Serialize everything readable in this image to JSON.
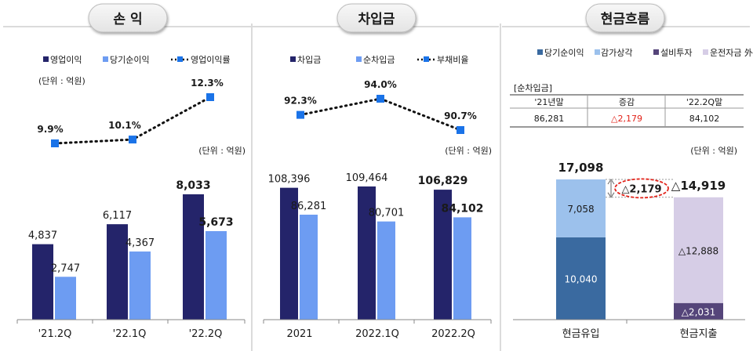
{
  "colors": {
    "navy": "#24246a",
    "light_blue": "#6d9cf2",
    "marker_blue": "#1a73e8",
    "steel_blue": "#3a6aa0",
    "pale_blue": "#9cc1ec",
    "purple": "#55457a",
    "lavender": "#d6cde6",
    "delta_red": "#e2231a",
    "frame_gray": "#cfcfcf"
  },
  "panels": {
    "pl": {
      "title": "손 익",
      "legend": [
        "영업이익",
        "당기순이익",
        "영업이익률"
      ],
      "unit_top": "(단위 : 억원)",
      "unit_mid": "(단위 : 억원)"
    },
    "debt": {
      "title": "차입금",
      "legend": [
        "차입금",
        "순차입금",
        "부채비율"
      ],
      "unit_mid": "(단위 : 억원)"
    },
    "cash": {
      "title": "현금흐름",
      "legend": [
        "당기순이익",
        "감가상각",
        "설비투자",
        "운전자금 外"
      ],
      "table_title": "[순차입금]",
      "table_headers": [
        "'21년말",
        "증감",
        "'22.2Q말"
      ],
      "table_values": [
        "86,281",
        "△2,179",
        "84,102"
      ],
      "unit": "(단위 : 억원)"
    }
  },
  "chart_data": [
    {
      "type": "bar",
      "categories": [
        "'21.2Q",
        "'22.1Q",
        "'22.2Q"
      ],
      "series": [
        {
          "name": "영업이익",
          "values": [
            4837,
            6117,
            8033
          ],
          "labels": [
            "4,837",
            "6,117",
            "8,033"
          ]
        },
        {
          "name": "당기순이익",
          "values": [
            2747,
            4367,
            5673
          ],
          "labels": [
            "2,747",
            "4,367",
            "5,673"
          ]
        }
      ],
      "line": {
        "name": "영업이익률",
        "values": [
          9.9,
          10.1,
          12.3
        ],
        "labels": [
          "9.9%",
          "10.1%",
          "12.3%"
        ]
      }
    },
    {
      "type": "bar",
      "categories": [
        "2021",
        "2022.1Q",
        "2022.2Q"
      ],
      "series": [
        {
          "name": "차입금",
          "values": [
            108396,
            109464,
            106829
          ],
          "labels": [
            "108,396",
            "109,464",
            "106,829"
          ]
        },
        {
          "name": "순차입금",
          "values": [
            86281,
            80701,
            84102
          ],
          "labels": [
            "86,281",
            "80,701",
            "84,102"
          ]
        }
      ],
      "line": {
        "name": "부채비율",
        "values": [
          92.3,
          94.0,
          90.7
        ],
        "labels": [
          "92.3%",
          "94.0%",
          "90.7%"
        ]
      }
    },
    {
      "type": "bar",
      "stacked": true,
      "categories": [
        "현금유입",
        "현금지출"
      ],
      "series": [
        {
          "name": "당기순이익",
          "values": [
            10040,
            0
          ],
          "labels": [
            "10,040",
            ""
          ]
        },
        {
          "name": "감가상각",
          "values": [
            7058,
            0
          ],
          "labels": [
            "7,058",
            ""
          ]
        },
        {
          "name": "설비투자",
          "values": [
            0,
            2031
          ],
          "labels": [
            "",
            "△2,031"
          ]
        },
        {
          "name": "운전자금 外",
          "values": [
            0,
            12888
          ],
          "labels": [
            "",
            "△12,888"
          ]
        }
      ],
      "totals": [
        "17,098",
        "△14,919"
      ],
      "difference_label": "△2,179"
    }
  ]
}
